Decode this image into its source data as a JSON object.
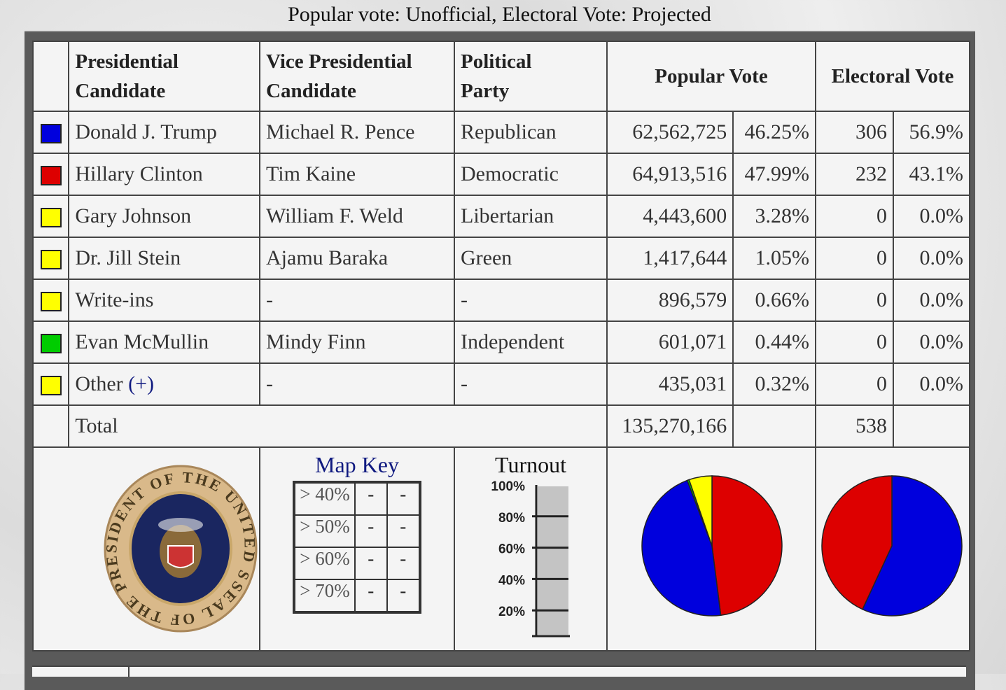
{
  "caption": "Popular vote: Unofficial, Electoral Vote: Projected",
  "headers": {
    "president": [
      "Presidential",
      "Candidate"
    ],
    "vp": [
      "Vice Presidential",
      "Candidate"
    ],
    "party": [
      "Political",
      "Party"
    ],
    "popular": "Popular Vote",
    "electoral": "Electoral Vote"
  },
  "rows": [
    {
      "color": "#0000dd",
      "president": "Donald J. Trump",
      "vp": "Michael R. Pence",
      "party": "Republican",
      "votes": "62,562,725",
      "pct": "46.25%",
      "ev": "306",
      "ev_pct": "56.9%"
    },
    {
      "color": "#dd0000",
      "president": "Hillary Clinton",
      "vp": "Tim Kaine",
      "party": "Democratic",
      "votes": "64,913,516",
      "pct": "47.99%",
      "ev": "232",
      "ev_pct": "43.1%"
    },
    {
      "color": "#ffff00",
      "president": "Gary Johnson",
      "vp": "William F. Weld",
      "party": "Libertarian",
      "votes": "4,443,600",
      "pct": "3.28%",
      "ev": "0",
      "ev_pct": "0.0%"
    },
    {
      "color": "#ffff00",
      "president": "Dr. Jill Stein",
      "vp": "Ajamu Baraka",
      "party": "Green",
      "votes": "1,417,644",
      "pct": "1.05%",
      "ev": "0",
      "ev_pct": "0.0%"
    },
    {
      "color": "#ffff00",
      "president": "Write-ins",
      "vp": "-",
      "party": "-",
      "votes": "896,579",
      "pct": "0.66%",
      "ev": "0",
      "ev_pct": "0.0%"
    },
    {
      "color": "#00cc00",
      "president": "Evan McMullin",
      "vp": "Mindy Finn",
      "party": "Independent",
      "votes": "601,071",
      "pct": "0.44%",
      "ev": "0",
      "ev_pct": "0.0%"
    },
    {
      "color": "#ffff00",
      "president": "Other",
      "president_link": "(+)",
      "vp": "-",
      "party": "-",
      "votes": "435,031",
      "pct": "0.32%",
      "ev": "0",
      "ev_pct": "0.0%"
    }
  ],
  "total": {
    "label": "Total",
    "votes": "135,270,166",
    "ev": "538"
  },
  "seal": {
    "text": "SEAL OF THE PRESIDENT OF THE UNITED STATES"
  },
  "map_key": {
    "title": "Map Key",
    "rows": [
      {
        "label": "> 40%",
        "a": "-",
        "b": "-"
      },
      {
        "label": "> 50%",
        "a": "-",
        "b": "-"
      },
      {
        "label": "> 60%",
        "a": "-",
        "b": "-"
      },
      {
        "label": "> 70%",
        "a": "-",
        "b": "-"
      }
    ]
  },
  "turnout": {
    "title": "Turnout",
    "ticks": [
      "100%",
      "80%",
      "60%",
      "40%",
      "20%"
    ]
  },
  "chart_data": [
    {
      "type": "pie",
      "slices": [
        {
          "label": "Hillary Clinton",
          "value": 47.99,
          "color": "#dd0000"
        },
        {
          "label": "Donald J. Trump",
          "value": 46.25,
          "color": "#0000dd"
        },
        {
          "label": "Evan McMullin",
          "value": 0.44,
          "color": "#00cc00"
        },
        {
          "label": "Others",
          "value": 5.31,
          "color": "#ffff00"
        }
      ]
    },
    {
      "type": "pie",
      "slices": [
        {
          "label": "Donald J. Trump",
          "value": 56.9,
          "color": "#0000dd"
        },
        {
          "label": "Hillary Clinton",
          "value": 43.1,
          "color": "#dd0000"
        }
      ]
    }
  ]
}
